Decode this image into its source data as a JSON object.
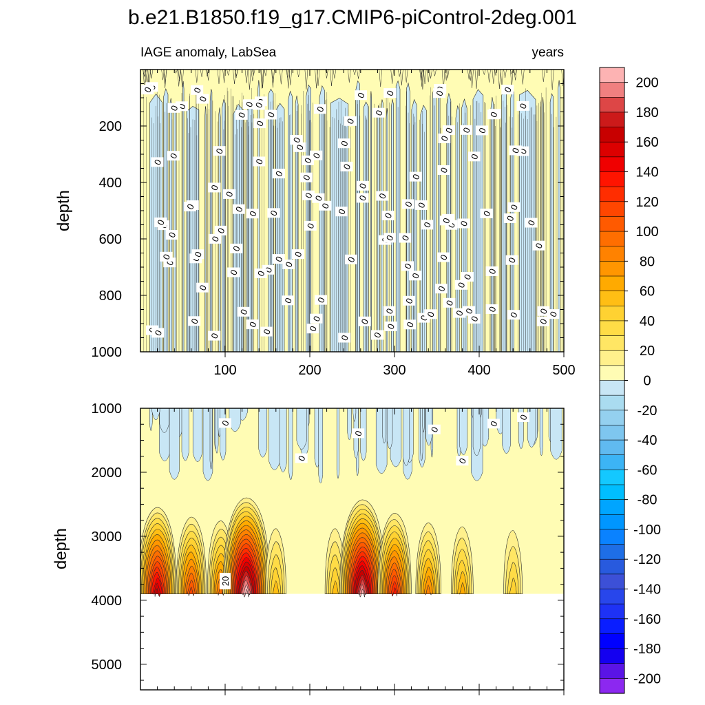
{
  "chart_data": {
    "type": "heatmap",
    "title": "b.e21.B1850.f19_g17.CMIP6-piControl-2deg.001",
    "subtitle_left": "IAGE anomaly, LabSea",
    "subtitle_right": "years",
    "x": {
      "range": [
        0,
        500
      ],
      "tick_labels": [
        "100",
        "200",
        "300",
        "400",
        "500"
      ],
      "tick_values": [
        100,
        200,
        300,
        400,
        500
      ]
    },
    "panels": [
      {
        "name": "upper",
        "ylabel": "depth",
        "ylim": [
          0,
          1000
        ],
        "tick_values": [
          200,
          400,
          600,
          800,
          1000
        ],
        "tick_labels": [
          "200",
          "400",
          "600",
          "800",
          "1000"
        ],
        "contour_label": "0",
        "contour_label_count": 130,
        "dominant_levels": [
          -10,
          10
        ]
      },
      {
        "name": "lower",
        "ylabel": "depth",
        "ylim": [
          1000,
          5400
        ],
        "tick_values": [
          1000,
          2000,
          3000,
          4000,
          5000
        ],
        "tick_labels": [
          "1000",
          "2000",
          "3000",
          "4000",
          "5000"
        ],
        "contour_labels": [
          "0",
          "20"
        ],
        "bottom_of_data": 3900,
        "hotspots": [
          {
            "x": 20,
            "peak": 150
          },
          {
            "x": 60,
            "peak": 100
          },
          {
            "x": 95,
            "peak": 80
          },
          {
            "x": 125,
            "peak": 200
          },
          {
            "x": 160,
            "peak": 40
          },
          {
            "x": 230,
            "peak": 40
          },
          {
            "x": 262,
            "peak": 190
          },
          {
            "x": 300,
            "peak": 120
          },
          {
            "x": 340,
            "peak": 70
          },
          {
            "x": 380,
            "peak": 50
          },
          {
            "x": 440,
            "peak": 30
          }
        ]
      }
    ],
    "colorbar": {
      "levels": [
        -210,
        -200,
        -190,
        -180,
        -170,
        -160,
        -150,
        -140,
        -130,
        -120,
        -110,
        -100,
        -90,
        -80,
        -70,
        -60,
        -50,
        -40,
        -30,
        -20,
        -10,
        0,
        10,
        20,
        30,
        40,
        50,
        60,
        70,
        80,
        90,
        100,
        110,
        120,
        130,
        140,
        150,
        160,
        170,
        180,
        190,
        200,
        210
      ],
      "tick_labels": [
        "200",
        "180",
        "160",
        "140",
        "120",
        "100",
        "80",
        "60",
        "40",
        "20",
        "0",
        "-20",
        "-40",
        "-60",
        "-80",
        "-100",
        "-120",
        "-140",
        "-160",
        "-180",
        "-200"
      ],
      "colors": [
        "#fdb3b3",
        "#f08080",
        "#dd4646",
        "#cc1a1a",
        "#c80000",
        "#dc0000",
        "#f00000",
        "#ff1400",
        "#ff2d00",
        "#ff4600",
        "#ff5a00",
        "#ff6e00",
        "#ff8200",
        "#ff9600",
        "#ffaa00",
        "#ffbe14",
        "#ffd232",
        "#ffdc46",
        "#ffe664",
        "#fff08c",
        "#fffcb4",
        "#c8e6f5",
        "#aadcf0",
        "#94d0ef",
        "#7ec6ef",
        "#60baf0",
        "#3cb4f5",
        "#14c8ff",
        "#00beff",
        "#00a5ff",
        "#0096ff",
        "#0a82ff",
        "#1e6ee6",
        "#285ade",
        "#3c50d7",
        "#2846eb",
        "#1e32f5",
        "#0a1eff",
        "#0000ff",
        "#1400f0",
        "#5a14e6",
        "#8c28f0"
      ]
    },
    "colors": {
      "positive_light": "#fffcb4",
      "negative_light": "#c8e6f5",
      "contour": "#2b2b2b",
      "frame": "#000000"
    }
  }
}
